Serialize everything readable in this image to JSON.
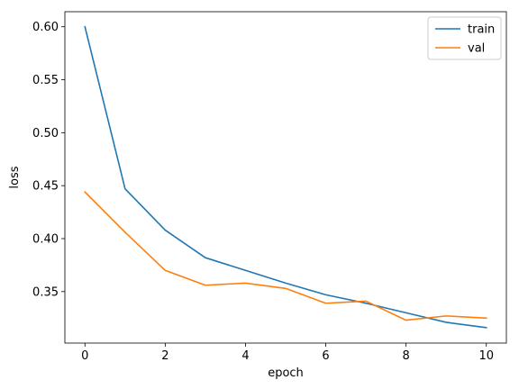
{
  "chart_data": {
    "type": "line",
    "title": "",
    "xlabel": "epoch",
    "ylabel": "loss",
    "xlim": [
      -0.5,
      10.5
    ],
    "ylim": [
      0.3014,
      0.6142
    ],
    "xticks": [
      0,
      2,
      4,
      6,
      8,
      10
    ],
    "xtick_labels": [
      "0",
      "2",
      "4",
      "6",
      "8",
      "10"
    ],
    "yticks": [
      0.35,
      0.4,
      0.45,
      0.5,
      0.55,
      0.6
    ],
    "ytick_labels": [
      "0.35",
      "0.40",
      "0.45",
      "0.50",
      "0.55",
      "0.60"
    ],
    "grid": false,
    "legend_position": "top-right",
    "x": [
      0,
      1,
      2,
      3,
      4,
      5,
      6,
      7,
      8,
      9,
      10
    ],
    "series": [
      {
        "name": "train",
        "color": "#1f77b4",
        "values": [
          0.6,
          0.447,
          0.408,
          0.382,
          0.37,
          0.358,
          0.347,
          0.339,
          0.33,
          0.321,
          0.316
        ]
      },
      {
        "name": "val",
        "color": "#ff7f0e",
        "values": [
          0.444,
          0.406,
          0.37,
          0.356,
          0.358,
          0.353,
          0.339,
          0.341,
          0.323,
          0.327,
          0.325
        ]
      }
    ]
  }
}
